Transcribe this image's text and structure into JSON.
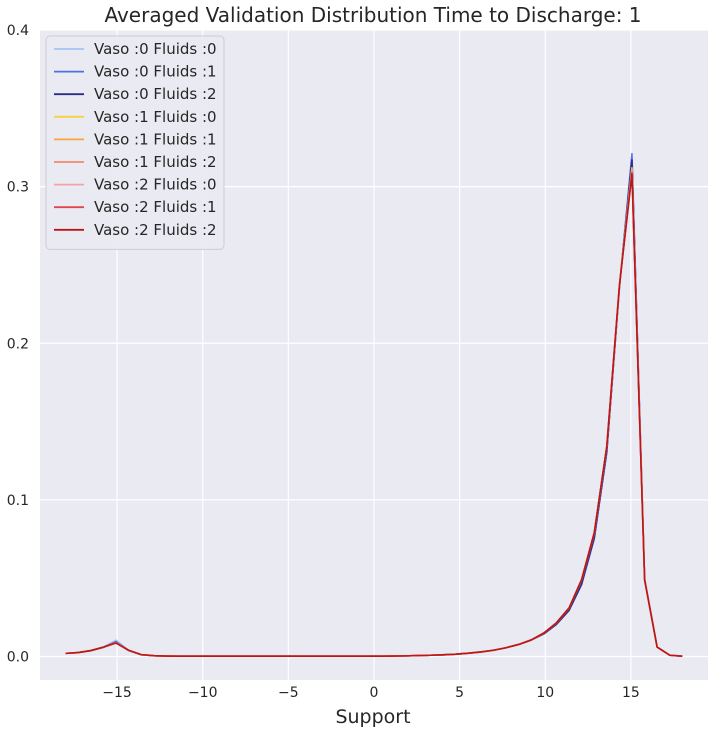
{
  "chart_data": {
    "type": "line",
    "title": "Averaged Validation Distribution Time to  Discharge: 1",
    "xlabel": "Support",
    "ylabel": "",
    "xlim": [
      -19.5,
      19.5
    ],
    "ylim": [
      -0.015,
      0.4
    ],
    "xticks": [
      -15,
      -10,
      -5,
      0,
      5,
      10,
      15
    ],
    "xtick_labels": [
      "−15",
      "−10",
      "−5",
      "0",
      "5",
      "10",
      "15"
    ],
    "yticks": [
      0.0,
      0.1,
      0.2,
      0.3,
      0.4
    ],
    "ytick_labels": [
      "0.0",
      "0.1",
      "0.2",
      "0.3",
      "0.4"
    ],
    "grid": true,
    "legend_position": "top-left",
    "x": [
      -18,
      -17.27,
      -16.53,
      -15.8,
      -15.06,
      -14.33,
      -13.59,
      -12.86,
      -12.12,
      -11.39,
      -10.65,
      -9.92,
      -9.18,
      -8.45,
      -7.71,
      -6.98,
      -6.24,
      -5.51,
      -4.78,
      -4.04,
      -3.31,
      -2.57,
      -1.84,
      -1.1,
      -0.37,
      0.37,
      1.1,
      1.84,
      2.57,
      3.31,
      4.04,
      4.78,
      5.51,
      6.24,
      6.98,
      7.71,
      8.45,
      9.18,
      9.92,
      10.65,
      11.39,
      12.12,
      12.86,
      13.59,
      14.33,
      15.06,
      15.8,
      16.53,
      17.27,
      18
    ],
    "series": [
      {
        "name": "Vaso :0 Fluids :0",
        "color": "#a6c3f5",
        "values": [
          0.002,
          0.0025,
          0.0038,
          0.006,
          0.0105,
          0.004,
          0.0012,
          0.0005,
          0.0003,
          0.0002,
          0.0002,
          0.0002,
          0.0002,
          0.0002,
          0.0002,
          0.0002,
          0.0002,
          0.0002,
          0.0002,
          0.0002,
          0.0002,
          0.0002,
          0.0002,
          0.0002,
          0.0002,
          0.0002,
          0.0003,
          0.0004,
          0.0006,
          0.0008,
          0.0011,
          0.0015,
          0.0021,
          0.0029,
          0.004,
          0.0056,
          0.0077,
          0.0105,
          0.0148,
          0.021,
          0.03,
          0.0475,
          0.077,
          0.132,
          0.235,
          0.318,
          0.05,
          0.006,
          0.0008,
          0.0002
        ]
      },
      {
        "name": "Vaso :0 Fluids :1",
        "color": "#4f6fe6",
        "values": [
          0.002,
          0.0025,
          0.0038,
          0.006,
          0.0095,
          0.004,
          0.0012,
          0.0005,
          0.0003,
          0.0002,
          0.0002,
          0.0002,
          0.0002,
          0.0002,
          0.0002,
          0.0002,
          0.0002,
          0.0002,
          0.0002,
          0.0002,
          0.0002,
          0.0002,
          0.0002,
          0.0002,
          0.0002,
          0.0002,
          0.0003,
          0.0004,
          0.0006,
          0.0008,
          0.0011,
          0.0015,
          0.0021,
          0.0029,
          0.004,
          0.0056,
          0.0077,
          0.0105,
          0.0145,
          0.0205,
          0.0295,
          0.046,
          0.075,
          0.13,
          0.236,
          0.321,
          0.049,
          0.006,
          0.0008,
          0.0002
        ]
      },
      {
        "name": "Vaso :0 Fluids :2",
        "color": "#2a2d80",
        "values": [
          0.002,
          0.0025,
          0.0037,
          0.0058,
          0.009,
          0.0038,
          0.0011,
          0.0005,
          0.0003,
          0.0002,
          0.0002,
          0.0002,
          0.0002,
          0.0002,
          0.0002,
          0.0002,
          0.0002,
          0.0002,
          0.0002,
          0.0002,
          0.0002,
          0.0002,
          0.0002,
          0.0002,
          0.0002,
          0.0002,
          0.0003,
          0.0004,
          0.0006,
          0.0008,
          0.0011,
          0.0015,
          0.0021,
          0.0029,
          0.004,
          0.0056,
          0.0077,
          0.0105,
          0.0145,
          0.0205,
          0.0295,
          0.046,
          0.076,
          0.131,
          0.236,
          0.317,
          0.049,
          0.006,
          0.0008,
          0.0002
        ]
      },
      {
        "name": "Vaso :1 Fluids :0",
        "color": "#f7d23c",
        "values": [
          0.002,
          0.0025,
          0.0038,
          0.006,
          0.0088,
          0.004,
          0.0012,
          0.0005,
          0.0003,
          0.0002,
          0.0002,
          0.0002,
          0.0002,
          0.0002,
          0.0002,
          0.0002,
          0.0002,
          0.0002,
          0.0002,
          0.0002,
          0.0002,
          0.0002,
          0.0002,
          0.0002,
          0.0002,
          0.0002,
          0.0003,
          0.0004,
          0.0006,
          0.0008,
          0.0011,
          0.0015,
          0.0021,
          0.0029,
          0.004,
          0.0056,
          0.0077,
          0.0106,
          0.015,
          0.0215,
          0.031,
          0.049,
          0.079,
          0.134,
          0.237,
          0.312,
          0.049,
          0.006,
          0.0008,
          0.0002
        ]
      },
      {
        "name": "Vaso :1 Fluids :1",
        "color": "#f5a53a",
        "values": [
          0.002,
          0.0025,
          0.0038,
          0.006,
          0.0088,
          0.004,
          0.0012,
          0.0005,
          0.0003,
          0.0002,
          0.0002,
          0.0002,
          0.0002,
          0.0002,
          0.0002,
          0.0002,
          0.0002,
          0.0002,
          0.0002,
          0.0002,
          0.0002,
          0.0002,
          0.0002,
          0.0002,
          0.0002,
          0.0002,
          0.0003,
          0.0004,
          0.0006,
          0.0008,
          0.0011,
          0.0015,
          0.0021,
          0.0029,
          0.004,
          0.0056,
          0.0077,
          0.0106,
          0.015,
          0.0215,
          0.031,
          0.049,
          0.079,
          0.134,
          0.237,
          0.311,
          0.049,
          0.006,
          0.0008,
          0.0002
        ]
      },
      {
        "name": "Vaso :1 Fluids :2",
        "color": "#f08a6e",
        "values": [
          0.002,
          0.0025,
          0.0038,
          0.006,
          0.0088,
          0.004,
          0.0012,
          0.0005,
          0.0003,
          0.0002,
          0.0002,
          0.0002,
          0.0002,
          0.0002,
          0.0002,
          0.0002,
          0.0002,
          0.0002,
          0.0002,
          0.0002,
          0.0002,
          0.0002,
          0.0002,
          0.0002,
          0.0002,
          0.0002,
          0.0003,
          0.0004,
          0.0006,
          0.0008,
          0.0011,
          0.0015,
          0.0021,
          0.0029,
          0.004,
          0.0056,
          0.0077,
          0.0106,
          0.015,
          0.0215,
          0.031,
          0.049,
          0.079,
          0.134,
          0.237,
          0.31,
          0.049,
          0.006,
          0.0008,
          0.0002
        ]
      },
      {
        "name": "Vaso :2 Fluids :0",
        "color": "#f5a3a8",
        "values": [
          0.002,
          0.0025,
          0.0038,
          0.006,
          0.0088,
          0.004,
          0.0012,
          0.0005,
          0.0003,
          0.0002,
          0.0002,
          0.0002,
          0.0002,
          0.0002,
          0.0002,
          0.0002,
          0.0002,
          0.0002,
          0.0002,
          0.0002,
          0.0002,
          0.0002,
          0.0002,
          0.0002,
          0.0002,
          0.0002,
          0.0003,
          0.0004,
          0.0006,
          0.0008,
          0.0011,
          0.0015,
          0.0021,
          0.0029,
          0.004,
          0.0056,
          0.0077,
          0.0106,
          0.015,
          0.0215,
          0.031,
          0.049,
          0.079,
          0.134,
          0.237,
          0.31,
          0.049,
          0.006,
          0.0008,
          0.0002
        ]
      },
      {
        "name": "Vaso :2 Fluids :1",
        "color": "#e0464f",
        "values": [
          0.002,
          0.0025,
          0.0038,
          0.006,
          0.0087,
          0.004,
          0.0012,
          0.0005,
          0.0003,
          0.0002,
          0.0002,
          0.0002,
          0.0002,
          0.0002,
          0.0002,
          0.0002,
          0.0002,
          0.0002,
          0.0002,
          0.0002,
          0.0002,
          0.0002,
          0.0002,
          0.0002,
          0.0002,
          0.0002,
          0.0003,
          0.0004,
          0.0006,
          0.0008,
          0.0011,
          0.0015,
          0.0021,
          0.0029,
          0.004,
          0.0056,
          0.0077,
          0.0106,
          0.015,
          0.0215,
          0.031,
          0.049,
          0.079,
          0.134,
          0.237,
          0.309,
          0.049,
          0.006,
          0.0008,
          0.0002
        ]
      },
      {
        "name": "Vaso :2 Fluids :2",
        "color": "#b81414",
        "values": [
          0.002,
          0.0025,
          0.0038,
          0.006,
          0.0086,
          0.004,
          0.0012,
          0.0005,
          0.0003,
          0.0002,
          0.0002,
          0.0002,
          0.0002,
          0.0002,
          0.0002,
          0.0002,
          0.0002,
          0.0002,
          0.0002,
          0.0002,
          0.0002,
          0.0002,
          0.0002,
          0.0002,
          0.0002,
          0.0002,
          0.0003,
          0.0004,
          0.0006,
          0.0008,
          0.0011,
          0.0015,
          0.0021,
          0.0029,
          0.004,
          0.0056,
          0.0077,
          0.0106,
          0.015,
          0.0215,
          0.031,
          0.049,
          0.079,
          0.134,
          0.237,
          0.308,
          0.049,
          0.006,
          0.0008,
          0.0002
        ]
      }
    ]
  }
}
